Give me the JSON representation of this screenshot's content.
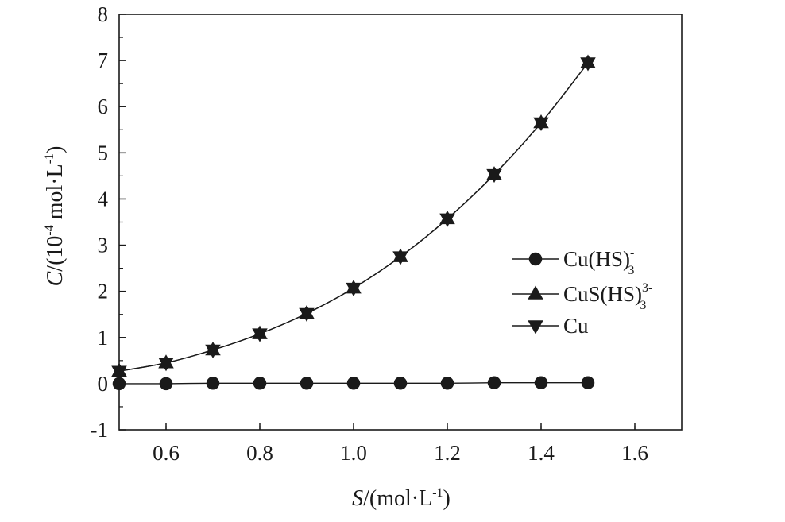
{
  "chart_data": {
    "type": "line",
    "xlabel": {
      "italic": "S",
      "unit": "/(mol·L",
      "exp": "-1",
      "close": ")"
    },
    "ylabel": {
      "italic": "C",
      "pre": "/(10",
      "exp1": "-4",
      "mid": " mol·L",
      "exp2": "-1",
      "close": ")"
    },
    "xlim": [
      0.5,
      1.7
    ],
    "ylim": [
      -1,
      8
    ],
    "xticks": [
      "0.6",
      "0.8",
      "1.0",
      "1.2",
      "1.4",
      "1.6"
    ],
    "yticks": [
      "-1",
      "0",
      "1",
      "2",
      "3",
      "4",
      "5",
      "6",
      "7",
      "8"
    ],
    "x": [
      0.5,
      0.6,
      0.7,
      0.8,
      0.9,
      1.0,
      1.1,
      1.2,
      1.3,
      1.4,
      1.5
    ],
    "series": [
      {
        "name": "Cu(HS)",
        "sub": "3",
        "sup": "-",
        "marker": "circle",
        "values": [
          0.0,
          0.0,
          0.01,
          0.01,
          0.01,
          0.01,
          0.01,
          0.01,
          0.02,
          0.02,
          0.02
        ]
      },
      {
        "name": "CuS(HS)",
        "sub": "3",
        "sup": "3-",
        "marker": "triangle-up",
        "values": [
          0.27,
          0.45,
          0.73,
          1.08,
          1.52,
          2.07,
          2.75,
          3.57,
          4.53,
          5.65,
          6.95
        ]
      },
      {
        "name": "Cu",
        "sub": "",
        "sup": "",
        "marker": "triangle-down",
        "values": [
          0.27,
          0.45,
          0.73,
          1.08,
          1.52,
          2.07,
          2.75,
          3.57,
          4.53,
          5.65,
          6.95
        ]
      }
    ],
    "grid": false,
    "legend": "center-right",
    "colors": {
      "line": "#1a1a1a",
      "frame": "#1a1a1a",
      "background": "#ffffff"
    }
  }
}
